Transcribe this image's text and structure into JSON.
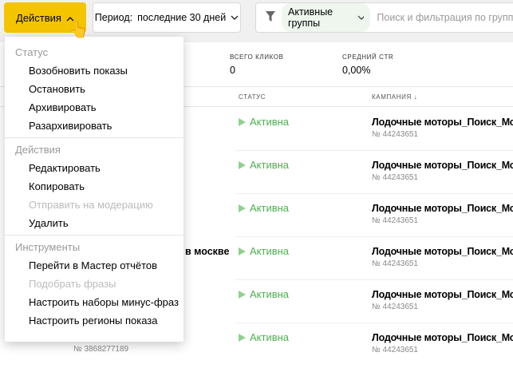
{
  "toolbar": {
    "actions_label": "Действия",
    "period_label": "Период:",
    "period_value": "последние 30 дней",
    "filter_chip": "Активные группы",
    "search_placeholder": "Поиск и фильтрация по группам"
  },
  "stats": [
    {
      "label": "ВСЕГО КЛИКОВ",
      "value": "0"
    },
    {
      "label": "СРЕДНИЙ CTR",
      "value": "0,00%"
    }
  ],
  "table": {
    "headers": {
      "status": "СТАТУС",
      "campaign": "КАМПАНИЯ"
    },
    "rows": [
      {
        "status": "Активна",
        "campaign": "Лодочные моторы_Поиск_Мск",
        "campaign_id": "№ 44243651"
      },
      {
        "status": "Активна",
        "campaign": "Лодочные моторы_Поиск_Мск",
        "campaign_id": "№ 44243651"
      },
      {
        "status": "Активна",
        "campaign": "Лодочные моторы_Поиск_Мск",
        "campaign_id": "№ 44243651"
      },
      {
        "name_partial": "в москве",
        "status": "Активна",
        "campaign": "Лодочные моторы_Поиск_Мск",
        "campaign_id": "№ 44243651"
      },
      {
        "status": "Активна",
        "campaign": "Лодочные моторы_Поиск_Мск",
        "campaign_id": "№ 44243651"
      },
      {
        "group_id": "№ 3868277189",
        "status": "Активна",
        "campaign": "Лодочные моторы_Поиск_Мск",
        "campaign_id": "№ 44243651"
      }
    ]
  },
  "menu": {
    "groups": [
      {
        "title": "Статус",
        "items": [
          {
            "label": "Возобновить показы"
          },
          {
            "label": "Остановить"
          },
          {
            "label": "Архивировать"
          },
          {
            "label": "Разархивировать"
          }
        ]
      },
      {
        "title": "Действия",
        "items": [
          {
            "label": "Редактировать"
          },
          {
            "label": "Копировать"
          },
          {
            "label": "Отправить на модерацию",
            "disabled": true
          },
          {
            "label": "Удалить"
          }
        ]
      },
      {
        "title": "Инструменты",
        "items": [
          {
            "label": "Перейти в Мастер отчётов"
          },
          {
            "label": "Подобрать фразы",
            "disabled": true
          },
          {
            "label": "Настроить наборы минус-фраз"
          },
          {
            "label": "Настроить регионы показа"
          }
        ]
      }
    ]
  },
  "colors": {
    "accent": "#f5c400",
    "status_active": "#4caf50"
  }
}
